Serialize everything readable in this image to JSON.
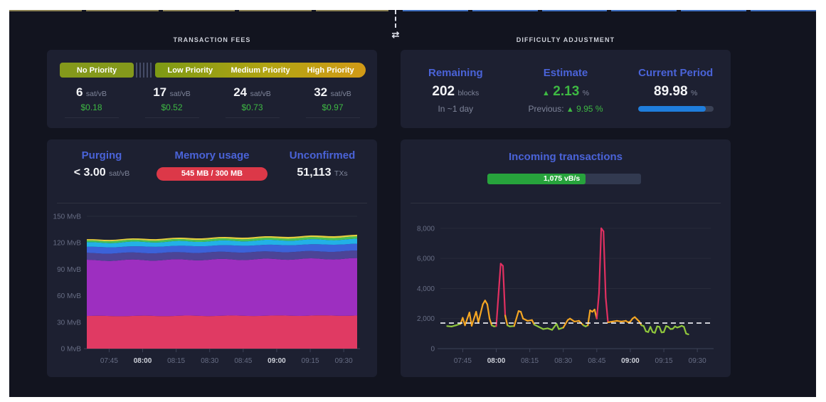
{
  "theme": {
    "dashboard_bg": "#12141f",
    "card_bg": "#1d2031",
    "accent_blue": "#4a63d8",
    "accent_green": "#3eb943",
    "danger_red": "#dc3848",
    "progress_blue": "#1f7ddb",
    "strip_left_color": "#867c4f",
    "strip_right_color": "#3d6ec0"
  },
  "divider": {
    "swap_icon": "⇄"
  },
  "fees": {
    "section_title": "TRANSACTION FEES",
    "tiers": [
      {
        "label": "No Priority",
        "rate": "6",
        "unit": "sat/vB",
        "fiat": "$0.18"
      },
      {
        "label": "Low Priority",
        "rate": "17",
        "unit": "sat/vB",
        "fiat": "$0.52"
      },
      {
        "label": "Medium Priority",
        "rate": "24",
        "unit": "sat/vB",
        "fiat": "$0.73"
      },
      {
        "label": "High Priority",
        "rate": "32",
        "unit": "sat/vB",
        "fiat": "$0.97"
      }
    ]
  },
  "difficulty": {
    "section_title": "DIFFICULTY ADJUSTMENT",
    "remaining": {
      "label": "Remaining",
      "value": "202",
      "unit": "blocks",
      "sub": "In ~1 day"
    },
    "estimate": {
      "label": "Estimate",
      "arrow": "▲",
      "value": "2.13",
      "unit": "%",
      "previous_label": "Previous:",
      "previous_arrow": "▲",
      "previous_value": "9.95 %"
    },
    "current_period": {
      "label": "Current Period",
      "value": "89.98",
      "unit": "%",
      "progress_pct": 90
    }
  },
  "mempool_stats": {
    "purging": {
      "label": "Purging",
      "value": "< 3.00",
      "unit": "sat/vB"
    },
    "memory": {
      "label": "Memory usage",
      "value": "545 MB / 300 MB"
    },
    "unconfirmed": {
      "label": "Unconfirmed",
      "value": "51,113",
      "unit": "TXs"
    }
  },
  "incoming": {
    "title": "Incoming transactions",
    "rate_label": "1,075 vB/s",
    "fill_pct": 64
  },
  "chart_data": [
    {
      "id": "mempool-size",
      "type": "area",
      "title": "",
      "ylabel": "MvB",
      "ylim": [
        0,
        150
      ],
      "y_ticks": {
        "values": [
          0,
          30,
          60,
          90,
          120,
          150
        ],
        "labels": [
          "0 MvB",
          "30 MvB",
          "60 MvB",
          "90 MvB",
          "120 MvB",
          "150 MvB"
        ]
      },
      "x_range_minutes": [
        0,
        121
      ],
      "x_ticks": {
        "minutes": [
          10,
          25,
          40,
          55,
          70,
          85,
          100,
          115
        ],
        "labels": [
          "07:45",
          "08:00",
          "08:15",
          "08:30",
          "08:45",
          "09:00",
          "09:15",
          "09:30"
        ],
        "bold": [
          "08:00",
          "09:00"
        ]
      },
      "bands": [
        {
          "name": "layer-1",
          "color": "#e03a63",
          "start": 37,
          "end": 37.5,
          "wiggle": 0.3
        },
        {
          "name": "layer-2",
          "color": "#9d2fc0",
          "start": 63,
          "end": 64.5,
          "wiggle": 0.8
        },
        {
          "name": "layer-3",
          "color": "#4c4496",
          "start": 8,
          "end": 8.5,
          "wiggle": 0.2
        },
        {
          "name": "layer-4",
          "color": "#3b62d9",
          "start": 7,
          "end": 8,
          "wiggle": 0.35
        },
        {
          "name": "layer-5",
          "color": "#22b1e6",
          "start": 5,
          "end": 5.5,
          "wiggle": 0.3
        },
        {
          "name": "layer-6",
          "color": "#47c156",
          "start": 2,
          "end": 2.5,
          "wiggle": 0.15
        },
        {
          "name": "layer-7",
          "color": "#e3cf3e",
          "start": 1.5,
          "end": 2,
          "wiggle": 0.1
        }
      ]
    },
    {
      "id": "incoming-tx-rate",
      "type": "line",
      "title": "Incoming transactions (vB/s)",
      "ylim": [
        0,
        8800
      ],
      "y_ticks": {
        "values": [
          0,
          2000,
          4000,
          6000,
          8000
        ],
        "labels": [
          "0",
          "2,000",
          "4,000",
          "6,000",
          "8,000"
        ]
      },
      "x_range_minutes": [
        0,
        121
      ],
      "x_ticks": {
        "minutes": [
          10,
          25,
          40,
          55,
          70,
          85,
          100,
          115
        ],
        "labels": [
          "07:45",
          "08:00",
          "08:15",
          "08:30",
          "08:45",
          "09:00",
          "09:15",
          "09:30"
        ],
        "bold": [
          "08:00",
          "09:00"
        ]
      },
      "median_line": 1700,
      "colors": {
        "low": "#8fc63c",
        "mid": "#f5a623",
        "high": "#e13061"
      },
      "thresholds": {
        "mid": 1720,
        "high": 3400
      },
      "series_minutes": [
        3,
        5,
        7,
        9,
        10,
        11,
        13,
        14,
        16,
        17,
        19,
        20,
        21,
        22,
        23,
        24,
        25,
        26,
        27,
        28,
        29,
        30,
        31,
        33,
        35,
        36,
        37,
        39,
        41,
        42,
        44,
        46,
        48,
        50,
        52,
        53,
        55,
        57,
        58,
        60,
        62,
        64,
        65,
        66,
        67,
        68,
        69,
        70,
        71,
        72,
        73,
        74,
        75,
        77,
        79,
        81,
        83,
        84,
        85,
        86,
        87,
        88,
        89,
        90,
        91,
        92,
        93,
        94,
        95,
        96,
        97,
        98,
        99,
        100,
        101,
        102,
        103,
        104,
        105,
        106,
        107,
        108,
        109,
        110,
        111
      ],
      "series_values": [
        1500,
        1470,
        1550,
        1650,
        2050,
        1550,
        2400,
        1520,
        2450,
        1750,
        2950,
        3200,
        2950,
        2000,
        1550,
        1480,
        1500,
        3600,
        5650,
        5500,
        2200,
        1550,
        1480,
        1500,
        2500,
        2450,
        2000,
        1850,
        1900,
        1600,
        1450,
        1300,
        1350,
        1250,
        1650,
        1300,
        1400,
        1900,
        2000,
        1800,
        1850,
        1550,
        1480,
        1550,
        2550,
        2450,
        2600,
        2000,
        3700,
        8000,
        7800,
        3400,
        1750,
        1800,
        1850,
        1800,
        1850,
        1750,
        1800,
        2000,
        2100,
        1950,
        1800,
        1550,
        1500,
        1150,
        1100,
        1450,
        1100,
        1050,
        1480,
        1450,
        1080,
        1100,
        1500,
        1450,
        1300,
        1320,
        1480,
        1400,
        1450,
        1520,
        1450,
        1000,
        950
      ]
    }
  ]
}
